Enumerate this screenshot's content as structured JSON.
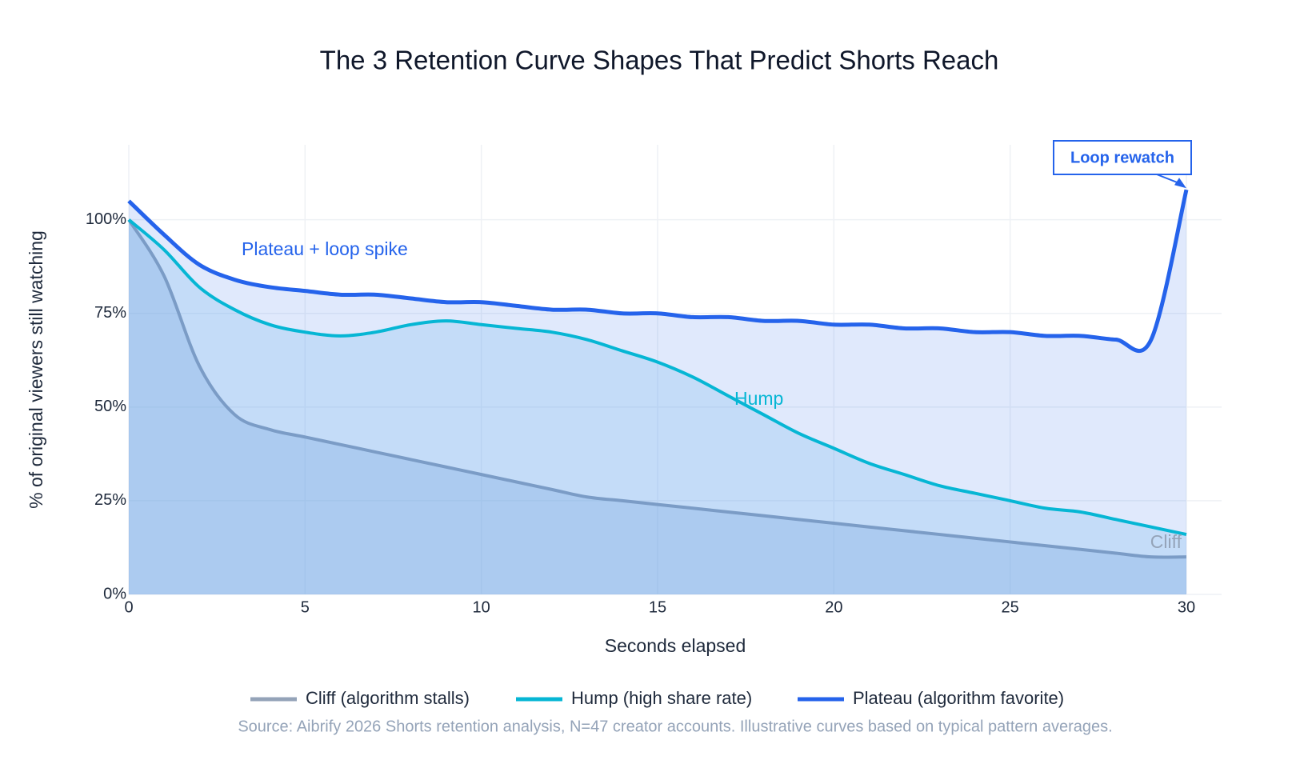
{
  "chart_data": {
    "type": "line",
    "title": "The 3 Retention Curve Shapes That Predict Shorts Reach",
    "x_label": "Seconds elapsed",
    "y_label": "% of original viewers still watching",
    "x": [
      0,
      1,
      2,
      3,
      4,
      5,
      6,
      7,
      8,
      9,
      10,
      11,
      12,
      13,
      14,
      15,
      16,
      17,
      18,
      19,
      20,
      21,
      22,
      23,
      24,
      25,
      26,
      27,
      28,
      29,
      30
    ],
    "series": [
      {
        "name": "Cliff (algorithm stalls)",
        "color": "#94a3b8",
        "fill": "rgba(120,160,205,0.28)",
        "values": [
          100,
          85,
          61,
          48,
          44,
          42,
          40,
          38,
          36,
          34,
          32,
          30,
          28,
          26,
          25,
          24,
          23,
          22,
          21,
          20,
          19,
          18,
          17,
          16,
          15,
          14,
          13,
          12,
          11,
          10,
          10
        ]
      },
      {
        "name": "Hump (high share rate)",
        "color": "#06b6d4",
        "fill": "rgba(140,200,240,0.28)",
        "values": [
          100,
          92,
          82,
          76,
          72,
          70,
          69,
          70,
          72,
          73,
          72,
          71,
          70,
          68,
          65,
          62,
          58,
          53,
          48,
          43,
          39,
          35,
          32,
          29,
          27,
          25,
          23,
          22,
          20,
          18,
          16
        ]
      },
      {
        "name": "Plateau (algorithm favorite)",
        "color": "#2563eb",
        "fill": "rgba(37,99,235,0.14)",
        "values": [
          105,
          96,
          88,
          84,
          82,
          81,
          80,
          80,
          79,
          78,
          78,
          77,
          76,
          76,
          75,
          75,
          74,
          74,
          73,
          73,
          72,
          72,
          71,
          71,
          70,
          70,
          69,
          69,
          68,
          68,
          108
        ]
      }
    ],
    "xlim": [
      0,
      30
    ],
    "xticks": [
      0,
      5,
      10,
      15,
      20,
      25,
      30
    ],
    "ylim": [
      0,
      120
    ],
    "yticks": [
      {
        "value": 0,
        "label": "0%"
      },
      {
        "value": 25,
        "label": "25%"
      },
      {
        "value": 50,
        "label": "50%"
      },
      {
        "value": 75,
        "label": "75%"
      },
      {
        "value": 100,
        "label": "100%"
      }
    ],
    "grid": true,
    "legend": "bottom",
    "annotations": [
      "Plateau + loop spike",
      "Hump",
      "Cliff",
      "Loop rewatch"
    ],
    "source": "Source: Aibrify 2026 Shorts retention analysis, N=47 creator accounts. Illustrative curves based on typical pattern averages."
  }
}
